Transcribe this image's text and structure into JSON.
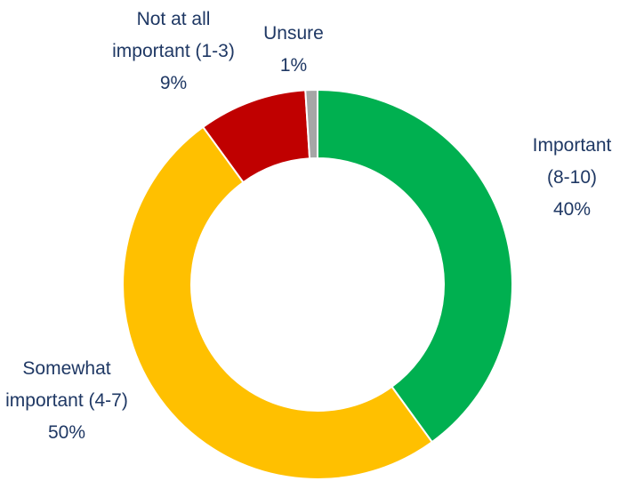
{
  "chart_data": {
    "type": "donut",
    "categories": [
      "Important (8-10)",
      "Somewhat important (4-7)",
      "Not at all important (1-3)",
      "Unsure"
    ],
    "values": [
      40,
      50,
      9,
      1
    ],
    "value_labels": [
      "40%",
      "50%",
      "9%",
      "1%"
    ],
    "colors": [
      "#00b050",
      "#ffc000",
      "#c00000",
      "#a6a6a6"
    ]
  }
}
